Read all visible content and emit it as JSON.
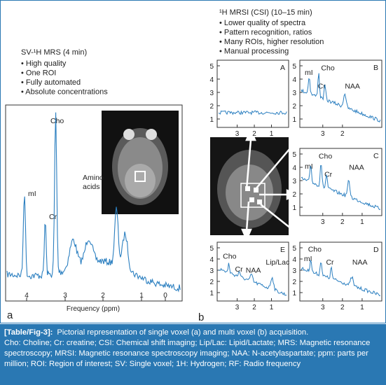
{
  "panel_a": {
    "letter": "a",
    "title": "SV-¹H MRS (4 min)",
    "bullets": [
      "• High quality",
      "• One ROI",
      "• Fully automated",
      "• Absolute concentrations"
    ],
    "peaks": [
      "Cho",
      "mI",
      "Cr"
    ],
    "annotation": [
      "Amino",
      "acids"
    ],
    "x_label": "Frequency (ppm)",
    "xticks": [
      "4",
      "3",
      "2",
      "1",
      "0"
    ]
  },
  "panel_b": {
    "letter": "b",
    "title": "¹H MRSI (CSI) (10–15 min)",
    "bullets": [
      "• Lower quality of spectra",
      "• Pattern recognition, ratios",
      "• Many ROIs, higher resolution",
      "• Manual processing"
    ],
    "subpanels": [
      {
        "label": "A",
        "yticks": [
          "5",
          "4",
          "3",
          "2",
          "1"
        ],
        "xticks": [
          "3",
          "2",
          "1"
        ],
        "peaks": []
      },
      {
        "label": "B",
        "yticks": [
          "5",
          "4",
          "3",
          "2",
          "1"
        ],
        "xticks": [
          "3",
          "2"
        ],
        "peaks": [
          "mI",
          "Cho",
          "Cr",
          "NAA"
        ]
      },
      {
        "label": "C",
        "yticks": [
          "5",
          "4",
          "3",
          "2",
          "1"
        ],
        "xticks": [
          "3",
          "2",
          "1"
        ],
        "peaks": [
          "mI",
          "Cho",
          "Cr",
          "NAA"
        ]
      },
      {
        "label": "E",
        "yticks": [
          "5",
          "4",
          "3",
          "2",
          "1"
        ],
        "xticks": [
          "3",
          "2",
          "1"
        ],
        "peaks": [
          "Cho",
          "Cr",
          "NAA",
          "Lip/Lac"
        ]
      },
      {
        "label": "D",
        "yticks": [
          "5",
          "4",
          "3",
          "2",
          "1"
        ],
        "xticks": [
          "3",
          "2",
          "1"
        ],
        "peaks": [
          "Cho",
          "mI",
          "Cr",
          "NAA"
        ]
      }
    ]
  },
  "caption": {
    "label": "[Table/Fig-3]:",
    "text": "Pictorial representation of single voxel (a) and multi voxel (b) acquisition.",
    "abbreviations": "Cho: Choline; Cr: creatine; CSI: Chemical shift imaging; Lip/Lac: Lipid/Lactate; MRS: Magnetic resonance spectroscopy; MRSI: Magnetic resonance spectroscopy imaging; NAA: N-acetylaspartate; ppm: parts per million; ROI: Region of interest; SV: Single voxel; 1H: Hydrogen; RF: Radio frequency"
  }
}
